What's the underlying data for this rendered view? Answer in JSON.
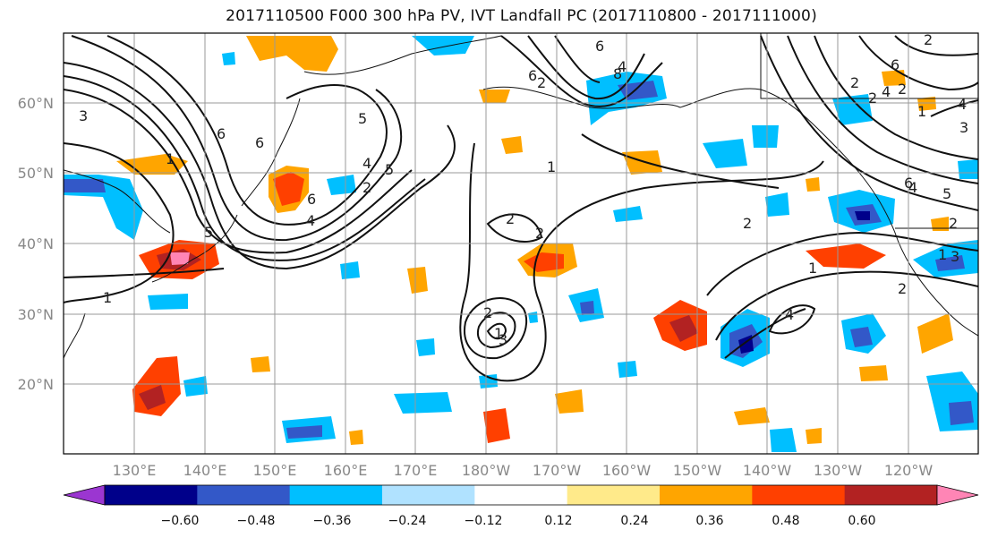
{
  "title": "2017110500 F000 300 hPa PV, IVT Landfall PC (2017110800 - 2017111000)",
  "lat_labels": [
    "60°N",
    "50°N",
    "40°N",
    "30°N",
    "20°N"
  ],
  "lon_labels": [
    "130°E",
    "140°E",
    "150°E",
    "160°E",
    "170°E",
    "180°W",
    "170°W",
    "160°W",
    "150°W",
    "140°W",
    "130°W",
    "120°W"
  ],
  "colorbar": {
    "colors": [
      "#9b36d1",
      "#00008a",
      "#3358c8",
      "#00bfff",
      "#b0e2ff",
      "#ffffff",
      "#ffea8a",
      "#ffa500",
      "#ff4000",
      "#b22222",
      "#ff85b5"
    ],
    "tick_labels": [
      "−0.60",
      "−0.48",
      "−0.36",
      "−0.24",
      "−0.12",
      "0.12",
      "0.24",
      "0.36",
      "0.48",
      "0.60"
    ]
  },
  "contour_labels": [
    "3",
    "6",
    "5",
    "1",
    "6",
    "2",
    "4",
    "6",
    "8",
    "2",
    "1",
    "2",
    "1",
    "2",
    "1",
    "2",
    "3",
    "5",
    "6",
    "4",
    "2",
    "4",
    "2",
    "1",
    "2",
    "6",
    "5",
    "4",
    "3",
    "2",
    "1",
    "2",
    "1",
    "4",
    "2",
    "6",
    "3",
    "4",
    "6",
    "4",
    "2",
    "5"
  ]
}
